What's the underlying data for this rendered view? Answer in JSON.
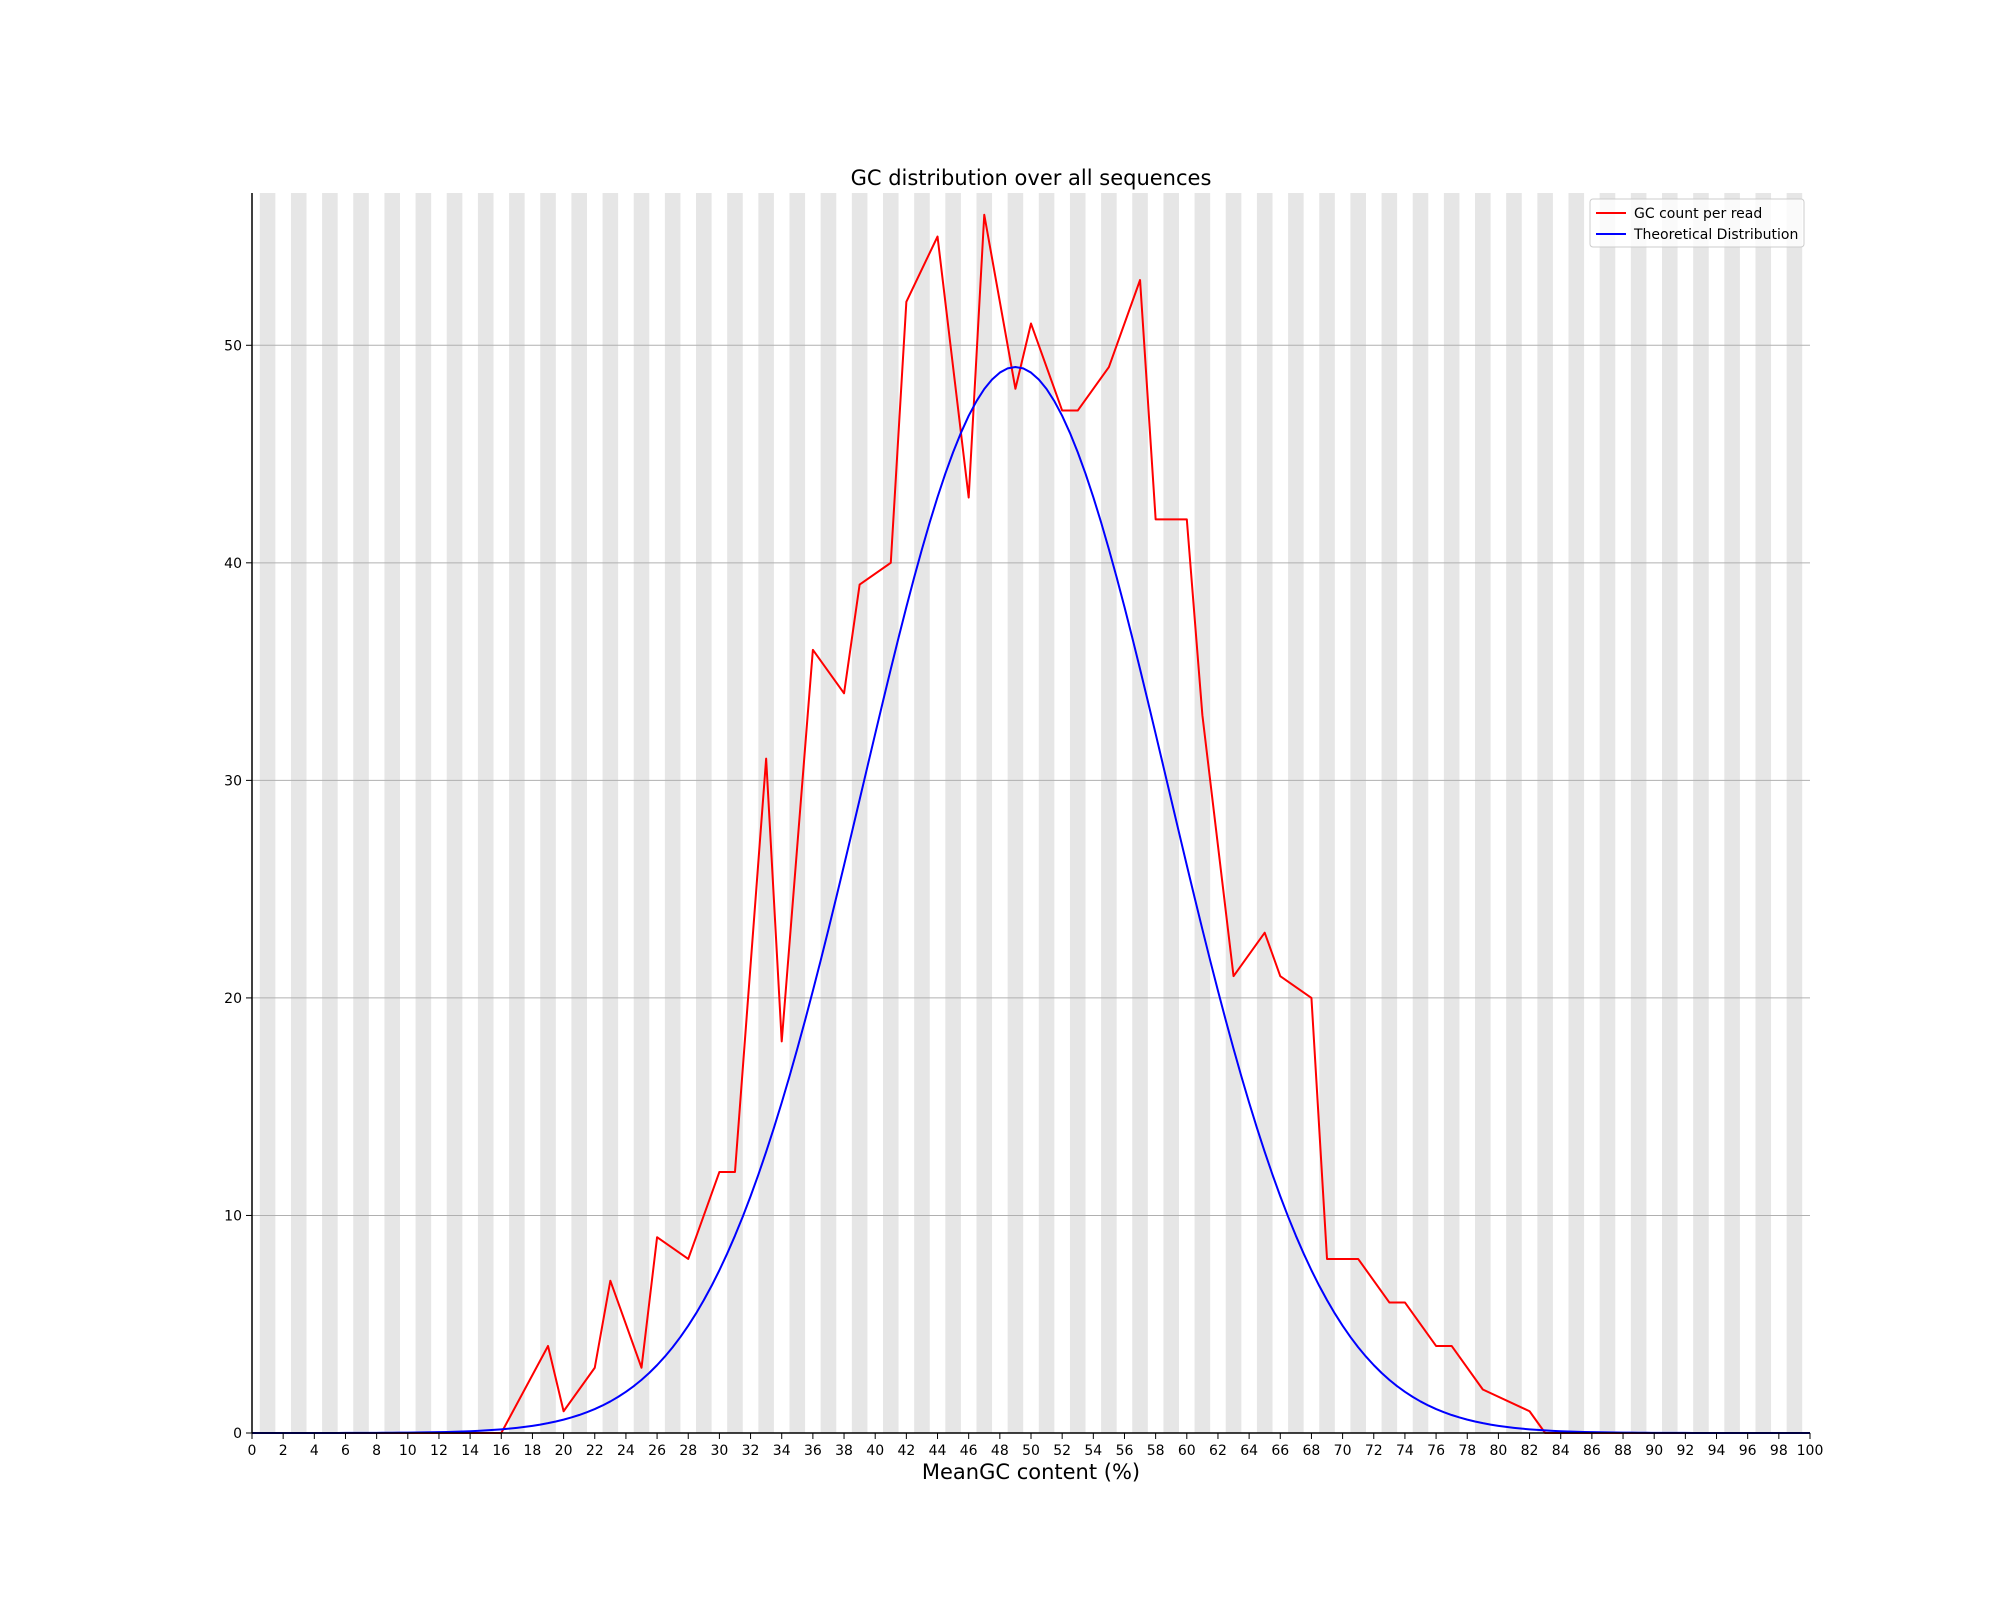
{
  "chart_data": {
    "type": "line",
    "title": "GC distribution over all sequences",
    "xlabel": "MeanGC content (%)",
    "ylabel": "",
    "xlim": [
      0,
      100
    ],
    "ylim": [
      0,
      57
    ],
    "x_ticks": [
      0,
      2,
      4,
      6,
      8,
      10,
      12,
      14,
      16,
      18,
      20,
      22,
      24,
      26,
      28,
      30,
      32,
      34,
      36,
      38,
      40,
      42,
      44,
      46,
      48,
      50,
      52,
      54,
      56,
      58,
      60,
      62,
      64,
      66,
      68,
      70,
      72,
      74,
      76,
      78,
      80,
      82,
      84,
      86,
      88,
      90,
      92,
      94,
      96,
      98,
      100
    ],
    "y_ticks": [
      0,
      10,
      20,
      30,
      40,
      50
    ],
    "grid": "horizontal",
    "background_bands": "alternating vertical gray bands, one per percent",
    "legend_position": "top-right",
    "series": [
      {
        "name": "GC count per read",
        "color": "#ff0000",
        "points": [
          [
            0,
            0
          ],
          [
            16,
            0
          ],
          [
            19,
            4
          ],
          [
            20,
            1
          ],
          [
            22,
            3
          ],
          [
            23,
            7
          ],
          [
            25,
            3
          ],
          [
            26,
            9
          ],
          [
            28,
            8
          ],
          [
            30,
            12
          ],
          [
            31,
            12
          ],
          [
            33,
            31
          ],
          [
            34,
            18
          ],
          [
            36,
            36
          ],
          [
            38,
            34
          ],
          [
            39,
            39
          ],
          [
            41,
            40
          ],
          [
            42,
            52
          ],
          [
            44,
            55
          ],
          [
            46,
            43
          ],
          [
            47,
            56
          ],
          [
            49,
            48
          ],
          [
            50,
            51
          ],
          [
            52,
            47
          ],
          [
            53,
            47
          ],
          [
            55,
            49
          ],
          [
            57,
            53
          ],
          [
            58,
            42
          ],
          [
            60,
            42
          ],
          [
            61,
            33
          ],
          [
            63,
            21
          ],
          [
            65,
            23
          ],
          [
            66,
            21
          ],
          [
            68,
            20
          ],
          [
            69,
            8
          ],
          [
            71,
            8
          ],
          [
            73,
            6
          ],
          [
            74,
            6
          ],
          [
            76,
            4
          ],
          [
            77,
            4
          ],
          [
            79,
            2
          ],
          [
            82,
            1
          ],
          [
            83,
            0
          ],
          [
            100,
            0
          ]
        ]
      },
      {
        "name": "Theoretical Distribution",
        "color": "#0000ff",
        "distribution": "normal",
        "mean": 49,
        "sd": 9.8,
        "peak": 49
      }
    ]
  }
}
